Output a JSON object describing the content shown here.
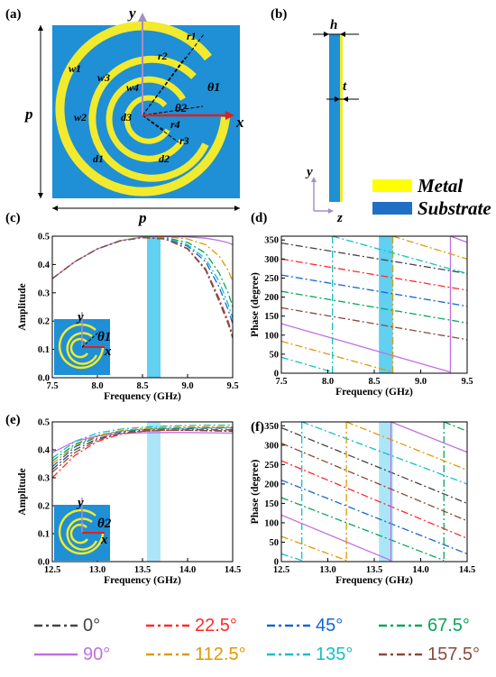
{
  "panel_labels": [
    "(a)",
    "(b)",
    "(c)",
    "(d)",
    "(e)",
    "(f)"
  ],
  "schematic": {
    "symbols": [
      "y",
      "x",
      "p",
      "p",
      "w1",
      "w2",
      "w3",
      "w4",
      "r1",
      "r2",
      "r3",
      "r4",
      "θ1",
      "θ2",
      "d1",
      "d2",
      "d3"
    ],
    "substrate_color": "#1f8fd6",
    "metal_color": "#f2ea2c",
    "side_view": {
      "h": "h",
      "t": "t",
      "y": "y",
      "z": "z"
    },
    "materials": [
      {
        "name": "Metal",
        "color": "#ffff00"
      },
      {
        "name": "Substrate",
        "color": "#1f6fc4"
      }
    ]
  },
  "chart_data": [
    {
      "id": "c",
      "type": "line",
      "xlabel": "Frequency (GHz)",
      "ylabel": "Amplitude",
      "xlim": [
        7.5,
        9.5
      ],
      "ylim": [
        0.0,
        0.5
      ],
      "xticks": [
        "7.5",
        "8.0",
        "8.5",
        "9.0",
        "9.5"
      ],
      "yticks": [
        "0.0",
        "0.1",
        "0.2",
        "0.3",
        "0.4",
        "0.5"
      ],
      "highlight": [
        8.55,
        8.7
      ],
      "inset_angle": "θ1",
      "x": [
        7.5,
        7.75,
        8.0,
        8.25,
        8.5,
        8.75,
        9.0,
        9.2,
        9.35,
        9.45,
        9.5
      ],
      "series": [
        {
          "values": [
            0.35,
            0.41,
            0.455,
            0.483,
            0.495,
            0.49,
            0.455,
            0.38,
            0.27,
            0.19,
            0.14
          ]
        },
        {
          "values": [
            0.35,
            0.41,
            0.455,
            0.483,
            0.495,
            0.491,
            0.457,
            0.385,
            0.28,
            0.2,
            0.15
          ]
        },
        {
          "values": [
            0.35,
            0.41,
            0.455,
            0.483,
            0.496,
            0.493,
            0.465,
            0.41,
            0.32,
            0.24,
            0.19
          ]
        },
        {
          "values": [
            0.35,
            0.41,
            0.455,
            0.484,
            0.496,
            0.495,
            0.478,
            0.44,
            0.37,
            0.3,
            0.25
          ]
        },
        {
          "values": [
            0.35,
            0.41,
            0.455,
            0.484,
            0.497,
            0.499,
            0.497,
            0.493,
            0.485,
            0.477,
            0.47
          ]
        },
        {
          "values": [
            0.35,
            0.41,
            0.455,
            0.484,
            0.497,
            0.498,
            0.49,
            0.47,
            0.43,
            0.38,
            0.34
          ]
        },
        {
          "values": [
            0.35,
            0.41,
            0.455,
            0.484,
            0.496,
            0.494,
            0.47,
            0.42,
            0.34,
            0.26,
            0.21
          ]
        },
        {
          "values": [
            0.35,
            0.41,
            0.455,
            0.483,
            0.495,
            0.49,
            0.456,
            0.383,
            0.275,
            0.195,
            0.145
          ]
        }
      ]
    },
    {
      "id": "d",
      "type": "line",
      "xlabel": "Frequency (GHz)",
      "ylabel": "Phase (degree)",
      "xlim": [
        7.5,
        9.5
      ],
      "ylim": [
        0,
        360
      ],
      "xticks": [
        "7.5",
        "8.0",
        "8.5",
        "9.0",
        "9.5"
      ],
      "yticks": [
        "0",
        "50",
        "100",
        "150",
        "200",
        "250",
        "300",
        "350"
      ],
      "highlight": [
        8.55,
        8.7
      ],
      "series": [
        {
          "values": [
            [
              7.5,
              342
            ],
            [
              9.5,
              262
            ]
          ]
        },
        {
          "values": [
            [
              7.5,
              300
            ],
            [
              9.5,
              218
            ]
          ]
        },
        {
          "values": [
            [
              7.5,
              258
            ],
            [
              9.5,
              176
            ]
          ]
        },
        {
          "values": [
            [
              7.5,
              215
            ],
            [
              9.5,
              132
            ]
          ]
        },
        {
          "values": [
            [
              7.5,
              130
            ],
            [
              9.32,
              3
            ],
            [
              9.32,
              360
            ],
            [
              9.5,
              344
            ]
          ]
        },
        {
          "values": [
            [
              7.5,
              84
            ],
            [
              8.7,
              3
            ],
            [
              8.7,
              360
            ],
            [
              9.5,
              300
            ]
          ]
        },
        {
          "values": [
            [
              7.5,
              42
            ],
            [
              8.05,
              3
            ],
            [
              8.05,
              360
            ],
            [
              9.5,
              262
            ]
          ]
        },
        {
          "values": [
            [
              7.5,
              172
            ],
            [
              9.5,
              88
            ]
          ]
        }
      ]
    },
    {
      "id": "e",
      "type": "line",
      "xlabel": "Frequency (GHz)",
      "ylabel": "Amplitude",
      "xlim": [
        12.5,
        14.5
      ],
      "ylim": [
        0.0,
        0.5
      ],
      "xticks": [
        "12.5",
        "13.0",
        "13.5",
        "14.0",
        "14.5"
      ],
      "yticks": [
        "0.0",
        "0.1",
        "0.2",
        "0.3",
        "0.4",
        "0.5"
      ],
      "highlight": [
        13.55,
        13.7
      ],
      "inset_angle": "θ2",
      "x": [
        12.5,
        12.75,
        13.0,
        13.25,
        13.5,
        13.75,
        14.0,
        14.25,
        14.5
      ],
      "series": [
        {
          "values": [
            0.33,
            0.4,
            0.44,
            0.46,
            0.468,
            0.47,
            0.47,
            0.468,
            0.466
          ]
        },
        {
          "values": [
            0.3,
            0.38,
            0.43,
            0.455,
            0.466,
            0.47,
            0.472,
            0.472,
            0.472
          ]
        },
        {
          "values": [
            0.34,
            0.41,
            0.447,
            0.465,
            0.472,
            0.475,
            0.476,
            0.477,
            0.478
          ]
        },
        {
          "values": [
            0.36,
            0.42,
            0.452,
            0.467,
            0.474,
            0.477,
            0.478,
            0.479,
            0.48
          ]
        },
        {
          "values": [
            0.39,
            0.43,
            0.45,
            0.458,
            0.461,
            0.462,
            0.462,
            0.461,
            0.46
          ]
        },
        {
          "values": [
            0.35,
            0.415,
            0.45,
            0.468,
            0.476,
            0.48,
            0.482,
            0.482,
            0.482
          ]
        },
        {
          "values": [
            0.37,
            0.43,
            0.46,
            0.474,
            0.481,
            0.485,
            0.487,
            0.488,
            0.488
          ]
        },
        {
          "values": [
            0.32,
            0.39,
            0.435,
            0.458,
            0.467,
            0.47,
            0.47,
            0.469,
            0.468
          ]
        }
      ]
    },
    {
      "id": "f",
      "type": "line",
      "xlabel": "Frequency (GHz)",
      "ylabel": "Phase (degree)",
      "xlim": [
        12.5,
        14.5
      ],
      "ylim": [
        0,
        360
      ],
      "xticks": [
        "12.5",
        "13.0",
        "13.5",
        "14.0",
        "14.5"
      ],
      "yticks": [
        "0",
        "50",
        "100",
        "150",
        "200",
        "250",
        "300",
        "350"
      ],
      "highlight": [
        13.55,
        13.7
      ],
      "series": [
        {
          "values": [
            [
              12.5,
              345
            ],
            [
              14.5,
              150
            ]
          ]
        },
        {
          "values": [
            [
              12.5,
              260
            ],
            [
              14.5,
              60
            ]
          ]
        },
        {
          "values": [
            [
              12.5,
              210
            ],
            [
              14.5,
              20
            ]
          ]
        },
        {
          "values": [
            [
              12.5,
              165
            ],
            [
              14.25,
              3
            ],
            [
              14.25,
              360
            ],
            [
              14.5,
              336
            ]
          ]
        },
        {
          "values": [
            [
              12.5,
              120
            ],
            [
              13.68,
              3
            ],
            [
              13.68,
              360
            ],
            [
              14.5,
              282
            ]
          ]
        },
        {
          "values": [
            [
              12.5,
              65
            ],
            [
              13.2,
              3
            ],
            [
              13.2,
              360
            ],
            [
              14.5,
              236
            ]
          ]
        },
        {
          "values": [
            [
              12.5,
              20
            ],
            [
              12.72,
              3
            ],
            [
              12.72,
              360
            ],
            [
              14.5,
              200
            ]
          ]
        },
        {
          "values": [
            [
              12.5,
              305
            ],
            [
              14.5,
              105
            ]
          ]
        }
      ]
    }
  ],
  "legend": [
    {
      "label": "0°",
      "color": "#444444"
    },
    {
      "label": "22.5°",
      "color": "#ff2a2a"
    },
    {
      "label": "45°",
      "color": "#1466d6"
    },
    {
      "label": "67.5°",
      "color": "#0aa55a"
    },
    {
      "label": "90°",
      "color": "#c070e0"
    },
    {
      "label": "112.5°",
      "color": "#e09a00"
    },
    {
      "label": "135°",
      "color": "#14c0c8"
    },
    {
      "label": "157.5°",
      "color": "#8a4a3a"
    }
  ]
}
